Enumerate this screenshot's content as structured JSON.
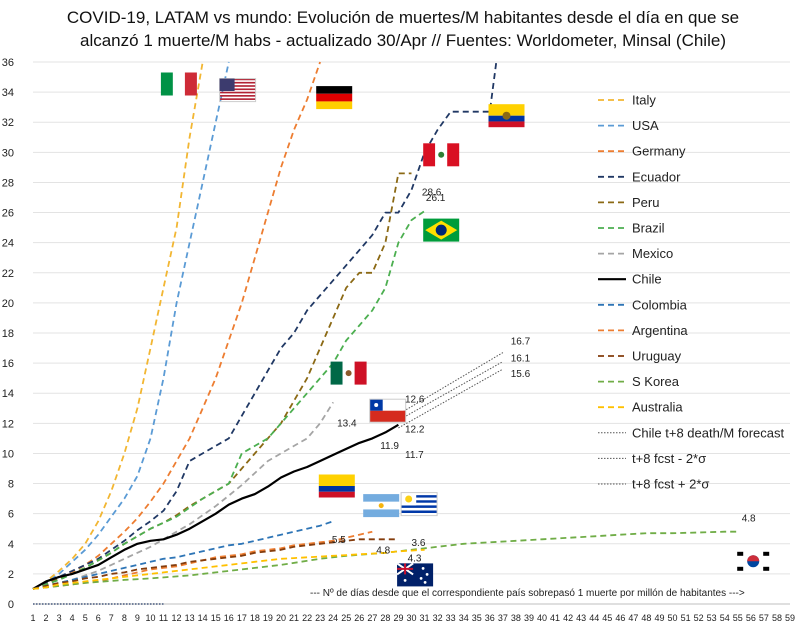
{
  "chart_data": {
    "type": "line",
    "title_line1": "COVID-19, LATAM vs mundo: Evolución de muertes/M habitantes desde el día en que se",
    "title_line2": "alcanzó 1 muerte/M habs - actualizado 30/Apr  // Fuentes: Worldometer, Minsal (Chile)",
    "xlabel": "--- Nº de días desde que el correspondiente país sobrepasó 1 muerte por millón de habitantes --->",
    "ylabel": "",
    "xlim": [
      1,
      59
    ],
    "ylim": [
      0,
      36
    ],
    "x_ticks": [
      1,
      2,
      3,
      4,
      5,
      6,
      7,
      8,
      9,
      10,
      11,
      12,
      13,
      14,
      15,
      16,
      17,
      18,
      19,
      20,
      21,
      22,
      23,
      24,
      25,
      26,
      27,
      28,
      29,
      30,
      31,
      32,
      33,
      34,
      35,
      36,
      37,
      38,
      39,
      40,
      41,
      42,
      43,
      44,
      45,
      46,
      47,
      48,
      49,
      50,
      51,
      52,
      53,
      54,
      55,
      56,
      57,
      58,
      59
    ],
    "y_ticks": [
      0,
      2,
      4,
      6,
      8,
      10,
      12,
      14,
      16,
      18,
      20,
      22,
      24,
      26,
      28,
      30,
      32,
      34,
      36
    ],
    "legend_position": "right",
    "series": [
      {
        "name": "Italy",
        "color": "#F2B632",
        "dash": "dashed",
        "x": [
          1,
          2,
          3,
          4,
          5,
          6,
          7,
          8,
          9,
          10,
          11,
          12,
          13,
          14
        ],
        "values": [
          1.0,
          1.5,
          2.2,
          3.0,
          4.0,
          5.5,
          7.5,
          10.0,
          13.0,
          17.0,
          21.0,
          25.0,
          31.0,
          36.0
        ]
      },
      {
        "name": "USA",
        "color": "#5B9BD5",
        "dash": "dashed",
        "x": [
          1,
          2,
          3,
          4,
          5,
          6,
          7,
          8,
          9,
          10,
          11,
          12,
          13,
          14,
          15,
          16
        ],
        "values": [
          1.0,
          1.4,
          2.0,
          2.8,
          3.6,
          4.6,
          5.8,
          7.0,
          8.5,
          11.0,
          15.0,
          20.0,
          24.0,
          28.0,
          32.0,
          36.0
        ]
      },
      {
        "name": "Germany",
        "color": "#ED7D31",
        "dash": "dashed",
        "x": [
          1,
          2,
          3,
          4,
          5,
          6,
          7,
          8,
          9,
          10,
          11,
          12,
          13,
          14,
          15,
          16,
          17,
          18,
          19,
          20,
          21,
          22,
          23
        ],
        "values": [
          1.0,
          1.3,
          1.7,
          2.1,
          2.6,
          3.2,
          4.0,
          4.8,
          5.7,
          6.8,
          8.0,
          9.5,
          11.0,
          13.0,
          15.0,
          17.5,
          20.0,
          23.0,
          26.0,
          29.0,
          31.5,
          33.5,
          36.0
        ]
      },
      {
        "name": "Ecuador",
        "color": "#203864",
        "dash": "dashed",
        "x": [
          1,
          2,
          3,
          4,
          5,
          6,
          7,
          8,
          9,
          10,
          11,
          12,
          13,
          14,
          15,
          16,
          17,
          18,
          19,
          20,
          21,
          22,
          23,
          24,
          25,
          26,
          27,
          28,
          29,
          30,
          31,
          32,
          33,
          34,
          35,
          36,
          36.5
        ],
        "values": [
          1.0,
          1.4,
          1.8,
          2.2,
          2.6,
          3.0,
          3.6,
          4.2,
          4.9,
          5.5,
          6.2,
          7.5,
          9.5,
          10.0,
          10.5,
          11.0,
          12.5,
          14.0,
          15.5,
          17.0,
          18.0,
          19.5,
          20.5,
          21.5,
          22.5,
          23.5,
          24.5,
          26.0,
          26.0,
          27.5,
          30.0,
          31.5,
          32.7,
          32.7,
          32.7,
          32.7,
          36.0
        ]
      },
      {
        "name": "Peru",
        "color": "#8B6914",
        "dash": "dashed",
        "x": [
          1,
          2,
          3,
          4,
          5,
          6,
          7,
          8,
          9,
          10,
          11,
          12,
          13,
          14,
          15,
          16,
          17,
          18,
          19,
          20,
          21,
          22,
          23,
          24,
          25,
          26,
          27,
          28,
          29,
          30
        ],
        "values": [
          1.0,
          1.3,
          1.7,
          2.0,
          2.4,
          2.9,
          3.4,
          4.0,
          4.5,
          5.0,
          5.4,
          5.9,
          6.5,
          7.0,
          7.5,
          8.0,
          9.0,
          10.0,
          11.0,
          12.0,
          13.5,
          15.0,
          17.0,
          19.0,
          21.0,
          22.0,
          22.0,
          24.0,
          28.6,
          28.6
        ]
      },
      {
        "name": "Brazil",
        "color": "#4CAF50",
        "dash": "dashed",
        "x": [
          1,
          2,
          3,
          4,
          5,
          6,
          7,
          8,
          9,
          10,
          11,
          12,
          13,
          14,
          15,
          16,
          17,
          18,
          19,
          20,
          21,
          22,
          23,
          24,
          25,
          26,
          27,
          28,
          29,
          30,
          31
        ],
        "values": [
          1.0,
          1.3,
          1.6,
          2.0,
          2.4,
          2.9,
          3.4,
          4.0,
          4.5,
          5.0,
          5.4,
          5.8,
          6.4,
          7.0,
          7.5,
          8.0,
          10.0,
          10.5,
          11.0,
          12.0,
          13.0,
          14.0,
          15.0,
          16.0,
          17.5,
          18.5,
          19.5,
          21.0,
          24.0,
          25.5,
          26.1
        ]
      },
      {
        "name": "Mexico",
        "color": "#A5A5A5",
        "dash": "dashed",
        "x": [
          1,
          2,
          3,
          4,
          5,
          6,
          7,
          8,
          9,
          10,
          11,
          12,
          13,
          14,
          15,
          16,
          17,
          18,
          19,
          20,
          21,
          22,
          23,
          24
        ],
        "values": [
          1.0,
          1.2,
          1.4,
          1.6,
          1.9,
          2.2,
          2.6,
          3.0,
          3.4,
          3.8,
          4.3,
          4.8,
          5.3,
          5.9,
          6.5,
          7.2,
          7.9,
          8.7,
          9.5,
          10.0,
          10.5,
          11.0,
          12.0,
          13.4
        ]
      },
      {
        "name": "Chile",
        "color": "#000000",
        "dash": "solid",
        "x": [
          1,
          2,
          3,
          4,
          5,
          6,
          7,
          8,
          9,
          10,
          11,
          12,
          13,
          14,
          15,
          16,
          17,
          18,
          19,
          20,
          21,
          22,
          23,
          24,
          25,
          26,
          27,
          28,
          29
        ],
        "values": [
          1.0,
          1.5,
          1.8,
          2.0,
          2.3,
          2.6,
          3.1,
          3.6,
          4.0,
          4.2,
          4.3,
          4.6,
          5.0,
          5.5,
          6.0,
          6.6,
          7.0,
          7.3,
          7.8,
          8.4,
          8.8,
          9.1,
          9.5,
          9.9,
          10.3,
          10.7,
          11.0,
          11.4,
          11.9
        ]
      },
      {
        "name": "Colombia",
        "color": "#2E75B6",
        "dash": "dashed",
        "x": [
          1,
          2,
          3,
          4,
          5,
          6,
          7,
          8,
          9,
          10,
          11,
          12,
          13,
          14,
          15,
          16,
          17,
          18,
          19,
          20,
          21,
          22,
          23,
          24
        ],
        "values": [
          1.0,
          1.2,
          1.4,
          1.6,
          1.8,
          2.0,
          2.2,
          2.4,
          2.6,
          2.8,
          3.0,
          3.1,
          3.3,
          3.5,
          3.7,
          3.9,
          4.0,
          4.2,
          4.4,
          4.6,
          4.8,
          5.0,
          5.2,
          5.5
        ]
      },
      {
        "name": "Argentina",
        "color": "#ED7D31",
        "dash": "dashed",
        "x": [
          1,
          2,
          3,
          4,
          5,
          6,
          7,
          8,
          9,
          10,
          11,
          12,
          13,
          14,
          15,
          16,
          17,
          18,
          19,
          20,
          21,
          22,
          23,
          24,
          25,
          26,
          27
        ],
        "values": [
          1.0,
          1.1,
          1.2,
          1.3,
          1.4,
          1.5,
          1.7,
          1.9,
          2.1,
          2.3,
          2.4,
          2.5,
          2.7,
          2.9,
          3.1,
          3.2,
          3.3,
          3.5,
          3.6,
          3.7,
          3.9,
          4.0,
          4.1,
          4.2,
          4.4,
          4.6,
          4.8
        ]
      },
      {
        "name": "Uruguay",
        "color": "#843C0C",
        "dash": "dashed",
        "x": [
          1,
          2,
          3,
          4,
          5,
          6,
          7,
          8,
          9,
          10,
          11,
          12,
          13,
          14,
          15,
          16,
          17,
          18,
          19,
          20,
          21,
          22,
          23,
          24,
          25,
          26,
          27,
          28,
          29
        ],
        "values": [
          1.0,
          1.2,
          1.4,
          1.5,
          1.7,
          1.8,
          2.0,
          2.1,
          2.3,
          2.4,
          2.5,
          2.6,
          2.8,
          2.9,
          3.0,
          3.1,
          3.2,
          3.4,
          3.5,
          3.6,
          3.8,
          3.9,
          4.0,
          4.1,
          4.2,
          4.3,
          4.3,
          4.3,
          4.3
        ]
      },
      {
        "name": "S Korea",
        "color": "#70AD47",
        "dash": "dashed",
        "x": [
          1,
          3,
          5,
          8,
          10,
          13,
          15,
          18,
          20,
          23,
          25,
          28,
          30,
          32,
          34,
          36,
          38,
          40,
          42,
          44,
          46,
          48,
          50,
          52,
          54,
          55
        ],
        "values": [
          1.0,
          1.2,
          1.4,
          1.6,
          1.7,
          1.9,
          2.1,
          2.4,
          2.6,
          3.0,
          3.2,
          3.4,
          3.6,
          3.8,
          4.0,
          4.1,
          4.2,
          4.3,
          4.4,
          4.5,
          4.6,
          4.7,
          4.7,
          4.75,
          4.8,
          4.8
        ]
      },
      {
        "name": "Australia",
        "color": "#FFC000",
        "dash": "dashed",
        "x": [
          1,
          2,
          3,
          4,
          5,
          6,
          7,
          8,
          9,
          10,
          11,
          12,
          13,
          14,
          15,
          16,
          17,
          18,
          19,
          20,
          21,
          22,
          23,
          24,
          25,
          26,
          27,
          28,
          29,
          30,
          31
        ],
        "values": [
          1.0,
          1.1,
          1.3,
          1.4,
          1.5,
          1.6,
          1.7,
          1.8,
          1.9,
          2.0,
          2.1,
          2.2,
          2.3,
          2.4,
          2.5,
          2.6,
          2.7,
          2.8,
          2.9,
          3.0,
          3.05,
          3.1,
          3.15,
          3.2,
          3.25,
          3.3,
          3.35,
          3.4,
          3.5,
          3.55,
          3.6
        ]
      },
      {
        "name": "Chile t+8 death/M forecast",
        "color": "#555555",
        "dash": "dotted",
        "x": [
          29,
          37
        ],
        "values": [
          12.2,
          16.1
        ]
      },
      {
        "name": "t+8 fcst - 2*σ",
        "color": "#555555",
        "dash": "dotted",
        "x": [
          29,
          37
        ],
        "values": [
          11.7,
          15.6
        ]
      },
      {
        "name": "t+8 fcst + 2*σ",
        "color": "#555555",
        "dash": "dotted",
        "x": [
          29,
          37
        ],
        "values": [
          12.6,
          16.7
        ]
      }
    ],
    "baseline_series": {
      "color": "#203864",
      "dash": "dotted",
      "x": [
        1,
        11
      ],
      "values": [
        0,
        0
      ]
    },
    "annotations": [
      {
        "text": "28.6",
        "x": 30.8,
        "y": 28.6
      },
      {
        "text": "26.1",
        "x": 31.1,
        "y": 26.1
      },
      {
        "text": "13.4",
        "x": 24.3,
        "y": 13.4
      },
      {
        "text": "11.9",
        "x": 27.6,
        "y": 11.9
      },
      {
        "text": "12.6",
        "x": 29.5,
        "y": 12.6
      },
      {
        "text": "12.2",
        "x": 29.5,
        "y": 12.2
      },
      {
        "text": "11.7",
        "x": 29.5,
        "y": 11.7
      },
      {
        "text": "16.7",
        "x": 37.6,
        "y": 16.7
      },
      {
        "text": "16.1",
        "x": 37.6,
        "y": 16.1
      },
      {
        "text": "15.6",
        "x": 37.6,
        "y": 15.6
      },
      {
        "text": "5.5",
        "x": 23.9,
        "y": 5.5
      },
      {
        "text": "4.8",
        "x": 27.3,
        "y": 4.8
      },
      {
        "text": "4.3",
        "x": 29.7,
        "y": 4.3
      },
      {
        "text": "3.6",
        "x": 30.0,
        "y": 3.6
      },
      {
        "text": "4.8",
        "x": 55.3,
        "y": 4.8
      }
    ],
    "flags": [
      {
        "name": "italy-flag",
        "x": 10.8,
        "y": 35.3
      },
      {
        "name": "usa-flag",
        "x": 15.3,
        "y": 34.9
      },
      {
        "name": "germany-flag",
        "x": 22.7,
        "y": 34.4
      },
      {
        "name": "ecuador-flag",
        "x": 35.9,
        "y": 33.2
      },
      {
        "name": "peru-flag",
        "x": 30.9,
        "y": 30.6
      },
      {
        "name": "brazil-flag",
        "x": 30.9,
        "y": 25.6
      },
      {
        "name": "mexico-flag",
        "x": 23.8,
        "y": 16.1
      },
      {
        "name": "chile-flag",
        "x": 26.8,
        "y": 13.6
      },
      {
        "name": "colombia-flag",
        "x": 22.9,
        "y": 8.6
      },
      {
        "name": "argentina-flag",
        "x": 26.3,
        "y": 7.3
      },
      {
        "name": "uruguay-flag",
        "x": 29.2,
        "y": 7.4
      },
      {
        "name": "australia-flag",
        "x": 28.9,
        "y": 2.7
      },
      {
        "name": "korea-flag",
        "x": 54.8,
        "y": 3.6
      }
    ]
  }
}
